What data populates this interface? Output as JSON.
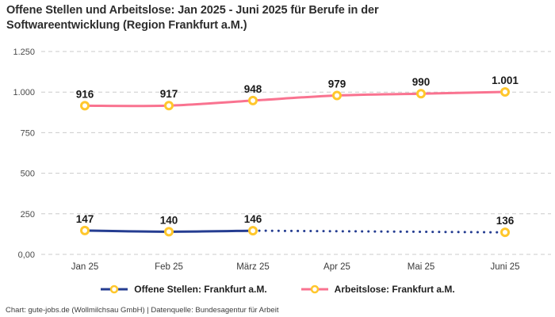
{
  "attribution": "Chart: gute-jobs.de (Wollmilchsau GmbH) | Datenquelle: Bundesagentur für Arbeit",
  "chart_data": {
    "type": "line",
    "title": "Offene Stellen und Arbeitslose: Jan 2025 - Juni 2025 für Berufe in der Softwareentwicklung (Region Frankfurt a.M.)",
    "categories": [
      "Jan 25",
      "Feb 25",
      "März 25",
      "Apr 25",
      "Mai 25",
      "Juni 25"
    ],
    "series": [
      {
        "name": "Offene Stellen: Frankfurt a.M.",
        "color": "#253d91",
        "values": [
          147,
          140,
          146,
          null,
          null,
          136
        ],
        "point_labels": [
          "147",
          "140",
          "146",
          null,
          null,
          "136"
        ],
        "gap_style": "dotted"
      },
      {
        "name": "Arbeitslose: Frankfurt a.M.",
        "color": "#f97390",
        "values": [
          916,
          917,
          948,
          979,
          990,
          1001
        ],
        "point_labels": [
          "916",
          "917",
          "948",
          "979",
          "990",
          "1.001"
        ]
      }
    ],
    "ylim": [
      0,
      1250
    ],
    "yticks": [
      {
        "value": 0,
        "label": "0,00"
      },
      {
        "value": 250,
        "label": "250"
      },
      {
        "value": 500,
        "label": "500"
      },
      {
        "value": 750,
        "label": "750"
      },
      {
        "value": 1000,
        "label": "1.000"
      },
      {
        "value": 1250,
        "label": "1.250"
      }
    ],
    "grid": true,
    "grid_color": "#cbcbcb",
    "legend_position": "bottom",
    "marker": {
      "shape": "circle",
      "ring_color": "#ffc72c",
      "fill": "#ffffff"
    }
  }
}
